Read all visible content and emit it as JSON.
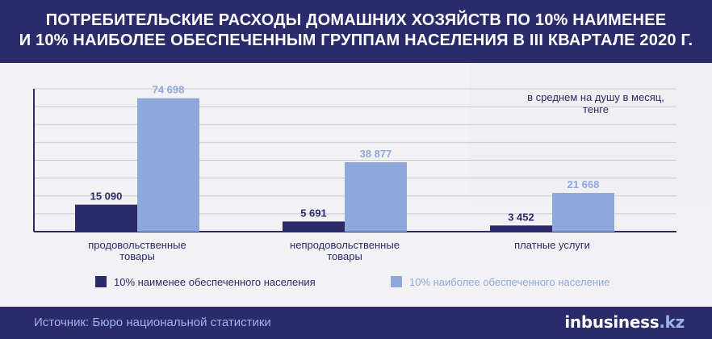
{
  "header": {
    "title_line1": "ПОТРЕБИТЕЛЬСКИЕ РАСХОДЫ ДОМАШНИХ ХОЗЯЙСТВ ПО 10% НАИМЕНЕЕ",
    "title_line2": "И 10% НАИБОЛЕЕ ОБЕСПЕЧЕННЫМ ГРУППАМ НАСЕЛЕНИЯ В III КВАРТАЛЕ 2020 Г."
  },
  "chart_data": {
    "type": "bar",
    "title": "ПОТРЕБИТЕЛЬСКИЕ РАСХОДЫ ДОМАШНИХ ХОЗЯЙСТВ ПО 10% НАИМЕНЕЕ И 10% НАИБОЛЕЕ ОБЕСПЕЧЕННЫМ ГРУППАМ НАСЕЛЕНИЯ В III КВАРТАЛЕ 2020 Г.",
    "unit_note_line1": "в среднем на душу в месяц,",
    "unit_note_line2": "тенге",
    "categories": [
      [
        "продовольственные",
        "товары"
      ],
      [
        "непродовольственные",
        "товары"
      ],
      [
        "платные услуги"
      ]
    ],
    "series": [
      {
        "name": "10% наименее обеспеченного населения",
        "values": [
          15090,
          5691,
          3452
        ],
        "labels": [
          "15 090",
          "5 691",
          "3 452"
        ],
        "color": "#2b2a6b"
      },
      {
        "name": "10% наиболее обеспеченного население",
        "values": [
          74698,
          38877,
          21668
        ],
        "labels": [
          "74 698",
          "38 877",
          "21 668"
        ],
        "color": "#8fa8db"
      }
    ],
    "ylim": [
      0,
      80000
    ],
    "grid": true,
    "legend_position": "bottom"
  },
  "colors": {
    "header_bg": "#2b2a6b",
    "low_series": "#2b2a6b",
    "high_series": "#8fa8db",
    "source_text": "#9fb4e6"
  },
  "footer": {
    "source": "Источник: Бюро национальной статистики",
    "logo_part1": "inbusiness",
    "logo_part2": ".kz"
  }
}
